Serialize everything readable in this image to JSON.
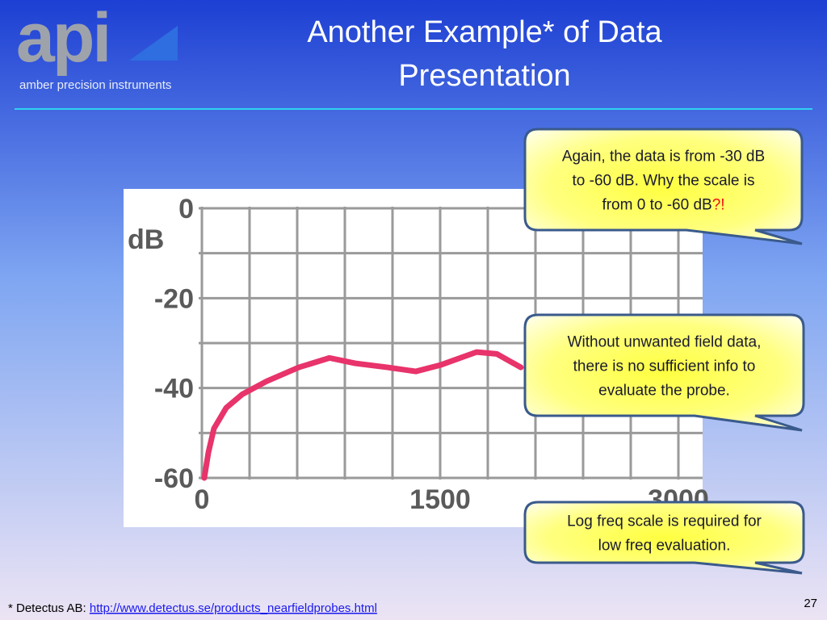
{
  "header": {
    "logo": "api",
    "tagline": "amber precision instruments",
    "title_lines": [
      "Another Example* of Data",
      "Presentation"
    ]
  },
  "chart": {
    "type": "line",
    "y_unit": "dB",
    "color": "#e8336b",
    "x": [
      15,
      41,
      76,
      153,
      254,
      407,
      610,
      803,
      966,
      1169,
      1347,
      1500,
      1729,
      1856,
      2008
    ],
    "values": [
      -60,
      -54.3,
      -49,
      -44.4,
      -41.4,
      -38.5,
      -35.4,
      -33.3,
      -34.5,
      -35.4,
      -36.3,
      -34.9,
      -32,
      -32.4,
      -35.4
    ],
    "xlim": [
      0,
      3000
    ],
    "ylim": [
      -60,
      0
    ],
    "xticks": [
      0,
      1500,
      3000
    ],
    "yticks": [
      0,
      -20,
      -40,
      -60
    ],
    "xgrid": [
      0,
      300,
      600,
      900,
      1200,
      1500,
      1800,
      2100,
      2400,
      2700,
      3000
    ],
    "ygrid": [
      0,
      -10,
      -20,
      -30,
      -40,
      -50,
      -60
    ]
  },
  "callouts": [
    {
      "lines": [
        "Again, the data is from -30 dB",
        "to -60 dB. Why the scale is",
        "from 0 to -60 dB"
      ],
      "emphasis": "?!"
    },
    {
      "lines": [
        "Without unwanted field data,",
        "there is no sufficient info to",
        "evaluate the probe."
      ]
    },
    {
      "lines": [
        "Log freq scale is required for",
        "low freq evaluation."
      ]
    }
  ],
  "footer": {
    "source_label": "* Detectus AB:",
    "link": "http://www.detectus.se/products_nearfieldprobes.html",
    "page_number": "27"
  }
}
